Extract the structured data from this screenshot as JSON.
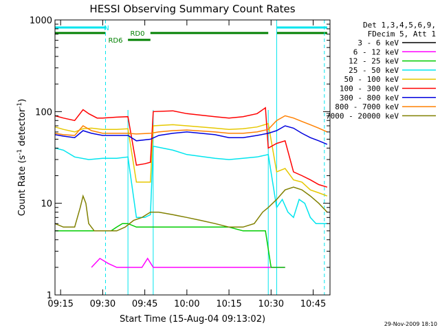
{
  "chart_data": {
    "type": "line",
    "title": "HESSI Observing Summary Count Rates",
    "xlabel": "Start Time (15-Aug-04 09:13:02)",
    "ylabel": "Count Rate (s-1 detector-1)",
    "ylabel_parts": {
      "a": "Count Rate (s",
      "b": "-1",
      "c": " detector",
      "d": "-1",
      "e": ")"
    },
    "yscale": "log",
    "ylim": [
      1,
      1000
    ],
    "xlim": [
      "09:13",
      "10:51"
    ],
    "x_ticks": [
      "09:15",
      "09:30",
      "09:45",
      "10:00",
      "10:15",
      "10:30",
      "10:45"
    ],
    "y_ticks": [
      "1",
      "10",
      "100",
      "1000"
    ],
    "legend_header": [
      "Det 1,3,4,5,6,9,",
      "FDecim 5, Att 1"
    ],
    "legend_position": "top-right",
    "footer": "29-Nov-2009 18:10",
    "flags": [
      {
        "label": "N",
        "color": "#00e5ee",
        "segments": [
          [
            "09:13",
            "09:31"
          ],
          [
            "10:32",
            "10:50"
          ]
        ]
      },
      {
        "label": "RD0",
        "color": "#008000",
        "segments": [
          [
            "09:13",
            "09:31"
          ],
          [
            "09:47",
            "10:29"
          ],
          [
            "10:32",
            "10:50"
          ]
        ]
      },
      {
        "label": "RD6",
        "color": "#008000",
        "segments": [
          [
            "09:39",
            "09:47"
          ]
        ]
      }
    ],
    "night_lines": {
      "solid": [
        "09:13",
        "10:32"
      ],
      "dashed": [
        "09:31",
        "10:49"
      ]
    },
    "saa_lines": {
      "solid": [
        "09:39",
        "09:48",
        "10:29"
      ]
    },
    "series": [
      {
        "name": "3 - 6 keV",
        "color": "#000000",
        "x": [],
        "y": []
      },
      {
        "name": "6 - 12 keV",
        "color": "#ff00ff",
        "x": [
          "09:26",
          "09:29",
          "09:32",
          "09:35",
          "09:38",
          "09:44",
          "09:46",
          "09:48",
          "09:55",
          "10:05",
          "10:15",
          "10:20",
          "10:24",
          "10:27",
          "10:32",
          "10:35"
        ],
        "y": [
          2,
          2.5,
          2.2,
          2,
          2,
          2,
          2.5,
          2,
          2,
          2,
          2,
          2,
          2,
          2,
          2,
          2
        ]
      },
      {
        "name": "12 - 25 keV",
        "color": "#00cc00",
        "x": [
          "09:13",
          "09:20",
          "09:25",
          "09:30",
          "09:33",
          "09:35",
          "09:37",
          "09:39",
          "09:42",
          "09:47",
          "09:50",
          "09:55",
          "10:00",
          "10:05",
          "10:10",
          "10:15",
          "10:20",
          "10:25",
          "10:28",
          "10:30",
          "10:32",
          "10:35"
        ],
        "y": [
          5,
          5,
          5,
          5,
          5,
          5.5,
          6,
          6,
          5.5,
          5.5,
          5.5,
          5.5,
          5.5,
          5.5,
          5.5,
          5.5,
          5,
          5,
          5,
          2,
          2,
          2
        ]
      },
      {
        "name": "25 - 50 keV",
        "color": "#00e5ee",
        "x": [
          "09:13",
          "09:16",
          "09:20",
          "09:25",
          "09:30",
          "09:35",
          "09:39",
          "09:42",
          "09:45",
          "09:47",
          "09:48",
          "09:55",
          "10:00",
          "10:10",
          "10:15",
          "10:20",
          "10:25",
          "10:29",
          "10:32",
          "10:34",
          "10:36",
          "10:38",
          "10:40",
          "10:42",
          "10:44",
          "10:46",
          "10:48",
          "10:50"
        ],
        "y": [
          40,
          38,
          32,
          30,
          31,
          31,
          32,
          7,
          7,
          7.5,
          42,
          38,
          34,
          31,
          30,
          31,
          32,
          34,
          9,
          11,
          8,
          7,
          11,
          10,
          7,
          6,
          6,
          6
        ]
      },
      {
        "name": "50 - 100 keV",
        "color": "#e6c800",
        "x": [
          "09:13",
          "09:16",
          "09:20",
          "09:23",
          "09:26",
          "09:30",
          "09:35",
          "09:39",
          "09:42",
          "09:45",
          "09:47",
          "09:48",
          "09:55",
          "10:00",
          "10:10",
          "10:15",
          "10:20",
          "10:25",
          "10:29",
          "10:32",
          "10:35",
          "10:38",
          "10:41",
          "10:44",
          "10:47",
          "10:50"
        ],
        "y": [
          68,
          64,
          60,
          65,
          66,
          64,
          64,
          65,
          17,
          17,
          17,
          70,
          72,
          70,
          66,
          64,
          65,
          68,
          74,
          22,
          24,
          18,
          17,
          14,
          13,
          12
        ]
      },
      {
        "name": "100 - 300 keV",
        "color": "#ff0000",
        "x": [
          "09:13",
          "09:16",
          "09:20",
          "09:23",
          "09:25",
          "09:28",
          "09:30",
          "09:35",
          "09:39",
          "09:42",
          "09:45",
          "09:47",
          "09:48",
          "09:55",
          "10:00",
          "10:10",
          "10:15",
          "10:20",
          "10:25",
          "10:28",
          "10:29",
          "10:32",
          "10:35",
          "10:38",
          "10:41",
          "10:44",
          "10:47",
          "10:50"
        ],
        "y": [
          90,
          85,
          80,
          105,
          95,
          85,
          85,
          87,
          88,
          26,
          27,
          28,
          100,
          102,
          95,
          88,
          85,
          88,
          95,
          110,
          40,
          45,
          48,
          22,
          20,
          18,
          16,
          15
        ]
      },
      {
        "name": "300 - 800 keV",
        "color": "#0000dd",
        "x": [
          "09:13",
          "09:16",
          "09:20",
          "09:23",
          "09:26",
          "09:30",
          "09:35",
          "09:39",
          "09:42",
          "09:47",
          "09:50",
          "09:55",
          "10:00",
          "10:10",
          "10:15",
          "10:20",
          "10:25",
          "10:29",
          "10:32",
          "10:35",
          "10:38",
          "10:41",
          "10:44",
          "10:47",
          "10:50"
        ],
        "y": [
          56,
          54,
          52,
          62,
          58,
          55,
          55,
          55,
          48,
          50,
          55,
          58,
          60,
          56,
          52,
          52,
          55,
          58,
          62,
          70,
          66,
          58,
          52,
          48,
          44
        ]
      },
      {
        "name": "800 - 7000 keV",
        "color": "#ff8000",
        "x": [
          "09:13",
          "09:16",
          "09:20",
          "09:23",
          "09:26",
          "09:30",
          "09:35",
          "09:39",
          "09:42",
          "09:47",
          "09:50",
          "09:55",
          "10:00",
          "10:10",
          "10:15",
          "10:20",
          "10:25",
          "10:29",
          "10:32",
          "10:35",
          "10:38",
          "10:41",
          "10:44",
          "10:47",
          "10:50"
        ],
        "y": [
          58,
          56,
          55,
          70,
          62,
          58,
          58,
          58,
          57,
          58,
          60,
          62,
          63,
          60,
          58,
          58,
          60,
          64,
          80,
          90,
          85,
          78,
          72,
          66,
          60
        ]
      },
      {
        "name": "7000 - 20000 keV",
        "color": "#808000",
        "x": [
          "09:13",
          "09:16",
          "09:20",
          "09:22",
          "09:23",
          "09:24",
          "09:25",
          "09:27",
          "09:30",
          "09:35",
          "09:38",
          "09:41",
          "09:44",
          "09:47",
          "09:50",
          "09:55",
          "10:00",
          "10:05",
          "10:10",
          "10:15",
          "10:20",
          "10:24",
          "10:27",
          "10:29",
          "10:32",
          "10:35",
          "10:38",
          "10:41",
          "10:44",
          "10:47",
          "10:50"
        ],
        "y": [
          6,
          5.5,
          5.5,
          9,
          12,
          10,
          6,
          5,
          5,
          5,
          5.5,
          6.5,
          7,
          8,
          8,
          7.5,
          7,
          6.5,
          6,
          5.5,
          5.5,
          6,
          8,
          9,
          11,
          14,
          15,
          14,
          12,
          10,
          8
        ]
      }
    ]
  }
}
